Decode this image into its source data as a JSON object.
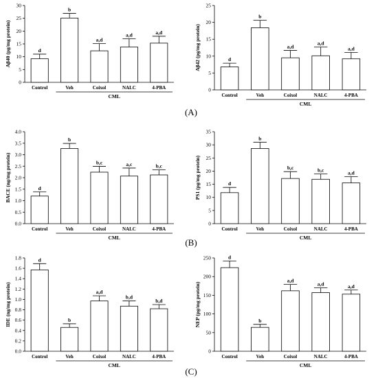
{
  "figure": {
    "panel_labels": [
      "(A)",
      "(B)",
      "(C)"
    ]
  },
  "chart_data": [
    {
      "type": "bar",
      "ylabel": "Aβ40 (pg/mg protein)",
      "categories": [
        "Control",
        "Veh",
        "Coixol",
        "NALC",
        "4-PBA"
      ],
      "group_label": "CML",
      "ylim": [
        0,
        30
      ],
      "ytick_step": 5,
      "ytick_decimals": 0,
      "values": [
        9.2,
        25.1,
        12.3,
        13.8,
        15.3
      ],
      "errors": [
        1.8,
        1.8,
        2.8,
        3.2,
        2.7
      ],
      "significance": [
        "d",
        "b",
        "a,d",
        "a,d",
        "a,d"
      ]
    },
    {
      "type": "bar",
      "ylabel": "Aβ42 (pg/mg protein)",
      "categories": [
        "Control",
        "Veh",
        "Coixol",
        "NALC",
        "4-PBA"
      ],
      "group_label": "CML",
      "ylim": [
        0,
        25
      ],
      "ytick_step": 5,
      "ytick_decimals": 0,
      "values": [
        6.8,
        18.4,
        9.5,
        10.1,
        9.2
      ],
      "errors": [
        1.1,
        2.2,
        2.2,
        2.6,
        1.9
      ],
      "significance": [
        "d",
        "b",
        "a,d",
        "a,d",
        "a,d"
      ]
    },
    {
      "type": "bar",
      "ylabel": "BACE (ng/mg protein)",
      "categories": [
        "Control",
        "Veh",
        "Coixol",
        "NALC",
        "4-PBA"
      ],
      "group_label": "CML",
      "ylim": [
        0,
        4
      ],
      "ytick_step": 0.5,
      "ytick_decimals": 1,
      "values": [
        1.2,
        3.27,
        2.24,
        2.07,
        2.12
      ],
      "errors": [
        0.18,
        0.22,
        0.25,
        0.35,
        0.22
      ],
      "significance": [
        "d",
        "b",
        "b,c",
        "a,c",
        "b,c"
      ]
    },
    {
      "type": "bar",
      "ylabel": "PS1 (pg/mg protein)",
      "categories": [
        "Control",
        "Veh",
        "Coixol",
        "NALC",
        "4-PBA"
      ],
      "group_label": "CML",
      "ylim": [
        0,
        35
      ],
      "ytick_step": 5,
      "ytick_decimals": 0,
      "values": [
        11.8,
        28.6,
        17.2,
        16.9,
        15.5
      ],
      "errors": [
        2.0,
        2.4,
        2.6,
        2.0,
        2.4
      ],
      "significance": [
        "d",
        "b",
        "b,c",
        "b,c",
        "a,d"
      ]
    },
    {
      "type": "bar",
      "ylabel": "IDE (ng/mg protein)",
      "categories": [
        "Control",
        "Veh",
        "Coixol",
        "NALC",
        "4-PBA"
      ],
      "group_label": "CML",
      "ylim": [
        0,
        1.8
      ],
      "ytick_step": 0.2,
      "ytick_decimals": 1,
      "values": [
        1.57,
        0.46,
        0.97,
        0.87,
        0.82
      ],
      "errors": [
        0.12,
        0.07,
        0.1,
        0.1,
        0.08
      ],
      "significance": [
        "d",
        "b",
        "a,d",
        "b,d",
        "b,d"
      ]
    },
    {
      "type": "bar",
      "ylabel": "NEP (pg/mg protein)",
      "categories": [
        "Control",
        "Veh",
        "Coixol",
        "NALC",
        "4-PBA"
      ],
      "group_label": "CML",
      "ylim": [
        0,
        250
      ],
      "ytick_step": 50,
      "ytick_decimals": 0,
      "values": [
        224,
        64,
        162,
        157,
        153
      ],
      "errors": [
        18,
        8,
        17,
        13,
        11
      ],
      "significance": [
        "d",
        "b",
        "a,d",
        "a,d",
        "a,d"
      ]
    }
  ]
}
